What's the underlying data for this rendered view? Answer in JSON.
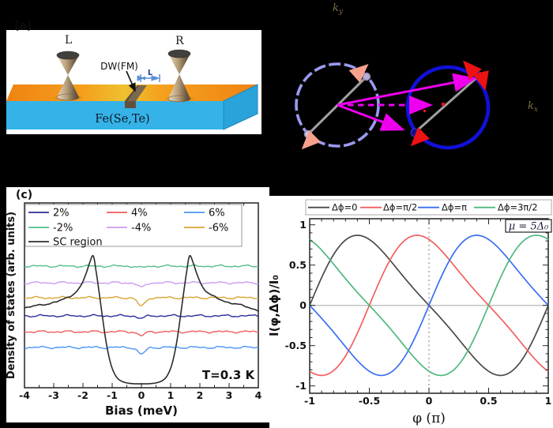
{
  "panel_a": {
    "label": "(a)",
    "probe_left": "L",
    "probe_right": "R",
    "domain_wall_label": "DW(FM)",
    "gap_label": "L",
    "substrate_label": "Fe(Se,Te)",
    "colors": {
      "top_face": "#f08a16",
      "top_face_mid": "#eec12f",
      "front_face": "#35b3e8",
      "side_face": "#2aa3da",
      "dw_strip": "#7b6850",
      "cone_dark_top": "#42403c",
      "measure_arrow": "#5b8fd4",
      "measure_label": "#1c3f8f"
    }
  },
  "panel_b": {
    "ky": {
      "base": "k",
      "sub": "y"
    },
    "kx": {
      "base": "k",
      "sub": "x"
    },
    "colors": {
      "left_circle": "#9a9af0",
      "right_circle": "#1111d8",
      "diagonal": "#a0a0a0",
      "momentum_arrows": "#ee00ee",
      "left_spin_arrows": "#f6a28f",
      "right_spin_arrows": "#ee1111",
      "right_dots": "#10108c",
      "left_dots": "#cfc8e2",
      "axis_labels": "#8d7b4e"
    }
  },
  "chart_data": [
    {
      "type": "line",
      "panel": "c",
      "corner_label": "(c)",
      "xlabel": "Bias (meV)",
      "ylabel": "Density of states (arb. units)",
      "annotation": "T=0.3 K",
      "xlim": [
        -4,
        4
      ],
      "xticks": [
        -4,
        -3,
        -2,
        -1,
        0,
        1,
        2,
        3,
        4
      ],
      "xtick_labels": [
        "-4",
        "-3",
        "-2",
        "-1",
        "0",
        "1",
        "2",
        "3",
        "4"
      ],
      "xminor_step": 0.5,
      "grid": false,
      "legend_position": "top-left-inside",
      "legend_rows": [
        [
          "2%",
          "4%",
          "6%"
        ],
        [
          "-2%",
          "-4%",
          "-6%"
        ],
        [
          "SC region"
        ]
      ],
      "noise_amp": 0.0075,
      "dip_sigma2": 0.03,
      "series": [
        {
          "name": "2%",
          "color": "#2c2c9c",
          "offset": 0.389,
          "dip": 0.013,
          "seed": 1
        },
        {
          "name": "4%",
          "color": "#f15c5c",
          "offset": 0.303,
          "dip": 0.021,
          "seed": 2
        },
        {
          "name": "6%",
          "color": "#4b94f5",
          "offset": 0.218,
          "dip": 0.038,
          "seed": 3
        },
        {
          "name": "-2%",
          "color": "#53be8c",
          "offset": 0.658,
          "dip": 0.009,
          "seed": 4
        },
        {
          "name": "-4%",
          "color": "#c79cf0",
          "offset": 0.568,
          "dip": 0.026,
          "seed": 5
        },
        {
          "name": "-6%",
          "color": "#d8a430",
          "offset": 0.487,
          "dip": 0.047,
          "seed": 6
        },
        {
          "name": "SC region",
          "color": "#2b2b2b",
          "kind": "sc_gap",
          "seed": 7,
          "coherence_peaks_meV": [
            -1.65,
            1.65
          ],
          "gap_flat_region_meV": [
            -0.9,
            0.9
          ],
          "control_points": [
            [
              -4,
              0.432
            ],
            [
              -3.2,
              0.455
            ],
            [
              -2.8,
              0.47
            ],
            [
              -2.4,
              0.5
            ],
            [
              -2.1,
              0.545
            ],
            [
              -1.9,
              0.615
            ],
            [
              -1.78,
              0.672
            ],
            [
              -1.65,
              0.714
            ],
            [
              -1.55,
              0.63
            ],
            [
              -1.45,
              0.52
            ],
            [
              -1.33,
              0.38
            ],
            [
              -1.2,
              0.24
            ],
            [
              -1.05,
              0.13
            ],
            [
              -0.9,
              0.07
            ],
            [
              -0.75,
              0.042
            ],
            [
              -0.55,
              0.028
            ],
            [
              -0.3,
              0.022
            ],
            [
              0,
              0.021
            ],
            [
              0.3,
              0.022
            ],
            [
              0.55,
              0.028
            ],
            [
              0.75,
              0.042
            ],
            [
              0.9,
              0.07
            ],
            [
              1.05,
              0.13
            ],
            [
              1.2,
              0.24
            ],
            [
              1.33,
              0.38
            ],
            [
              1.45,
              0.52
            ],
            [
              1.55,
              0.63
            ],
            [
              1.65,
              0.714
            ],
            [
              1.78,
              0.672
            ],
            [
              1.9,
              0.615
            ],
            [
              2.1,
              0.545
            ],
            [
              2.4,
              0.5
            ],
            [
              2.8,
              0.47
            ],
            [
              3.2,
              0.455
            ],
            [
              4,
              0.419
            ]
          ]
        }
      ]
    },
    {
      "type": "line",
      "panel": "d",
      "xlabel": "φ (π)",
      "ylabel": "I(φ,Δϕ)/I₀",
      "annotation": "μ = 5Δ₀",
      "xlim": [
        -1,
        1
      ],
      "ylim": [
        -1.09,
        1.075
      ],
      "xticks": [
        -1,
        -0.5,
        0,
        0.5,
        1
      ],
      "xtick_labels": [
        "-1",
        "-0.5",
        "0",
        "0.5",
        "1"
      ],
      "yticks": [
        1,
        0.5,
        0,
        -0.5,
        -1
      ],
      "ytick_labels": [
        "1",
        "0.5",
        "0",
        "-0.5",
        "-1"
      ],
      "minor_step": 0.1,
      "zero_hline": true,
      "zero_vline_dotted": true,
      "peak_value": 0.87,
      "formula": "I(φ) = -0.818·[sin(π(φ−Δ)) − 0.191·sin(2π(φ−Δ))], Δ = Δϕ/π·0.5",
      "amplitude": 0.818,
      "skew": 0.191,
      "legend_position": "top-outside",
      "series": [
        {
          "name": "Δϕ=0",
          "color": "#4a4a4a",
          "phase_shift": 0,
          "zeros": [
            -1,
            0,
            1
          ],
          "max_at": -0.6
        },
        {
          "name": "Δϕ=π/2",
          "color": "#f25f5f",
          "phase_shift": 0.5,
          "zeros": [
            -0.5,
            0.5
          ],
          "max_at": -0.1
        },
        {
          "name": "Δϕ=π",
          "color": "#3a6ff0",
          "phase_shift": 1,
          "zeros": [
            -1,
            0,
            1
          ],
          "max_at": 0.4
        },
        {
          "name": "Δϕ=3π/2",
          "color": "#4fb87e",
          "phase_shift": 1.5,
          "zeros": [
            -0.5,
            0.5
          ],
          "max_at": 0.9
        }
      ]
    }
  ]
}
